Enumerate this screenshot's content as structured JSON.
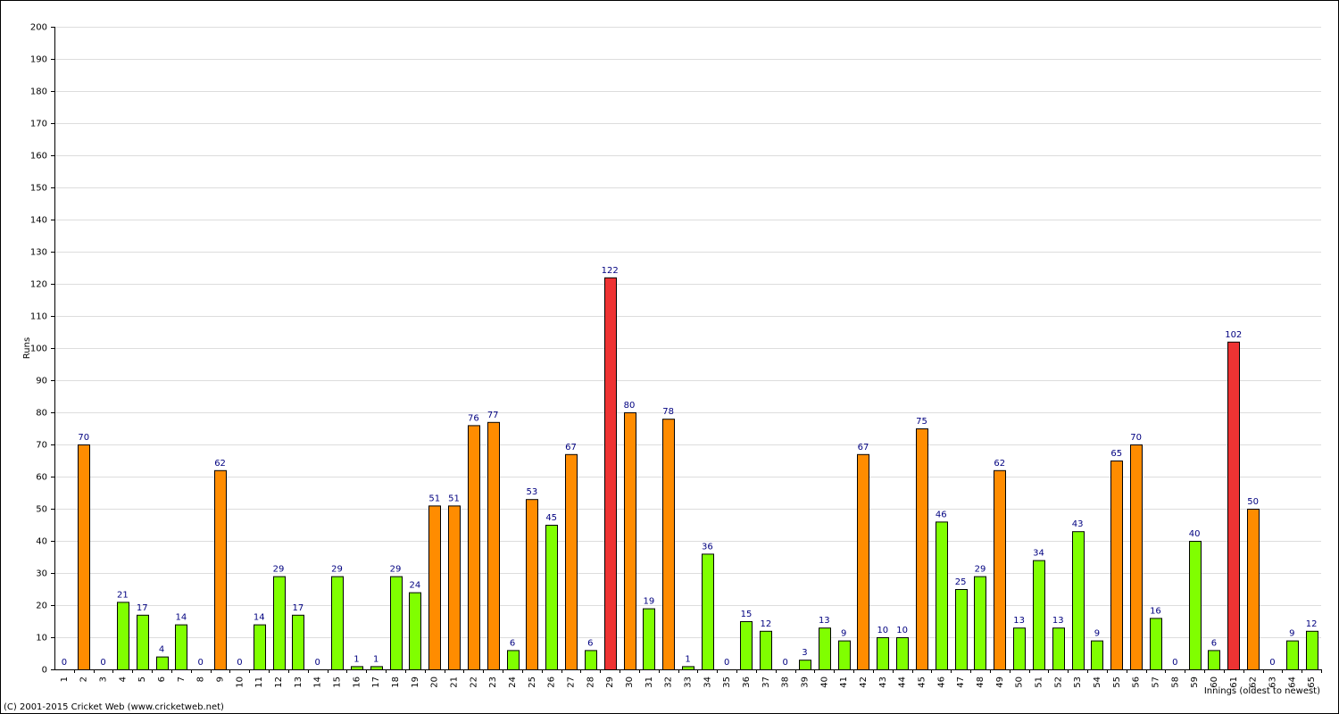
{
  "chart_data": {
    "type": "bar",
    "ylabel": "Runs",
    "xlabel": "Innings (oldest to newest)",
    "footer": "(C) 2001-2015 Cricket Web (www.cricketweb.net)",
    "categories": [
      "1",
      "2",
      "3",
      "4",
      "5",
      "6",
      "7",
      "8",
      "9",
      "10",
      "11",
      "12",
      "13",
      "14",
      "15",
      "16",
      "17",
      "18",
      "19",
      "20",
      "21",
      "22",
      "23",
      "24",
      "25",
      "26",
      "27",
      "28",
      "29",
      "30",
      "31",
      "32",
      "33",
      "34",
      "35",
      "36",
      "37",
      "38",
      "39",
      "40",
      "41",
      "42",
      "43",
      "44",
      "45",
      "46",
      "47",
      "48",
      "49",
      "50",
      "51",
      "52",
      "53",
      "54",
      "55",
      "56",
      "57",
      "58",
      "59",
      "60",
      "61",
      "62",
      "63",
      "64",
      "65"
    ],
    "values": [
      0,
      70,
      0,
      21,
      17,
      4,
      14,
      0,
      62,
      0,
      14,
      29,
      17,
      0,
      29,
      1,
      1,
      29,
      24,
      51,
      51,
      76,
      77,
      6,
      53,
      45,
      67,
      6,
      122,
      80,
      19,
      78,
      1,
      36,
      0,
      15,
      12,
      0,
      3,
      13,
      9,
      67,
      10,
      10,
      75,
      46,
      25,
      29,
      62,
      13,
      34,
      13,
      43,
      9,
      65,
      70,
      16,
      0,
      40,
      6,
      102,
      50,
      0,
      9,
      12
    ],
    "bar_colors": [
      "#80ff00",
      "#ff8c00",
      "#80ff00",
      "#80ff00",
      "#80ff00",
      "#80ff00",
      "#80ff00",
      "#80ff00",
      "#ff8c00",
      "#80ff00",
      "#80ff00",
      "#80ff00",
      "#80ff00",
      "#80ff00",
      "#80ff00",
      "#80ff00",
      "#80ff00",
      "#80ff00",
      "#80ff00",
      "#ff8c00",
      "#ff8c00",
      "#ff8c00",
      "#ff8c00",
      "#80ff00",
      "#ff8c00",
      "#80ff00",
      "#ff8c00",
      "#80ff00",
      "#ee3333",
      "#ff8c00",
      "#80ff00",
      "#ff8c00",
      "#80ff00",
      "#80ff00",
      "#80ff00",
      "#80ff00",
      "#80ff00",
      "#80ff00",
      "#80ff00",
      "#80ff00",
      "#80ff00",
      "#ff8c00",
      "#80ff00",
      "#80ff00",
      "#ff8c00",
      "#80ff00",
      "#80ff00",
      "#80ff00",
      "#ff8c00",
      "#80ff00",
      "#80ff00",
      "#80ff00",
      "#80ff00",
      "#80ff00",
      "#ff8c00",
      "#ff8c00",
      "#80ff00",
      "#80ff00",
      "#80ff00",
      "#80ff00",
      "#ee3333",
      "#ff8c00",
      "#80ff00",
      "#80ff00",
      "#80ff00"
    ],
    "ylim": [
      0,
      200
    ],
    "yticks": [
      0,
      10,
      20,
      30,
      40,
      50,
      60,
      70,
      80,
      90,
      100,
      110,
      120,
      130,
      140,
      150,
      160,
      170,
      180,
      190,
      200
    ],
    "grid": true
  }
}
